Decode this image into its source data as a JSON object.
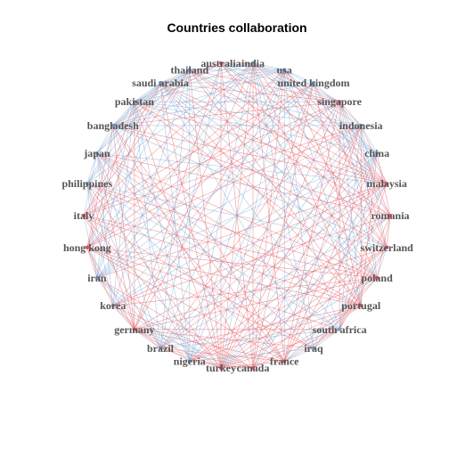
{
  "chart_data": {
    "type": "network",
    "layout": "circle",
    "title": "Countries collaboration",
    "colors": {
      "blue_edge": "#6a9fd0",
      "red_edge": "#e8474f",
      "label": "#555555"
    },
    "nodes": [
      {
        "id": "australia",
        "color": "red"
      },
      {
        "id": "india",
        "color": "blue"
      },
      {
        "id": "usa",
        "color": "blue"
      },
      {
        "id": "united kingdom",
        "color": "blue"
      },
      {
        "id": "singapore",
        "color": "red"
      },
      {
        "id": "indonesia",
        "color": "blue"
      },
      {
        "id": "china",
        "color": "blue"
      },
      {
        "id": "malaysia",
        "color": "red"
      },
      {
        "id": "romania",
        "color": "red"
      },
      {
        "id": "switzerland",
        "color": "red"
      },
      {
        "id": "poland",
        "color": "red"
      },
      {
        "id": "portugal",
        "color": "red"
      },
      {
        "id": "south africa",
        "color": "blue"
      },
      {
        "id": "iraq",
        "color": "blue"
      },
      {
        "id": "france",
        "color": "red"
      },
      {
        "id": "canada",
        "color": "red"
      },
      {
        "id": "turkey",
        "color": "red"
      },
      {
        "id": "nigeria",
        "color": "blue"
      },
      {
        "id": "brazil",
        "color": "blue"
      },
      {
        "id": "germany",
        "color": "red"
      },
      {
        "id": "korea",
        "color": "blue"
      },
      {
        "id": "iran",
        "color": "blue"
      },
      {
        "id": "hong kong",
        "color": "red"
      },
      {
        "id": "italy",
        "color": "red"
      },
      {
        "id": "philippines",
        "color": "blue"
      },
      {
        "id": "japan",
        "color": "blue"
      },
      {
        "id": "bangladesh",
        "color": "blue"
      },
      {
        "id": "pakistan",
        "color": "blue"
      },
      {
        "id": "saudi arabia",
        "color": "blue"
      },
      {
        "id": "thailand",
        "color": "blue"
      }
    ]
  }
}
